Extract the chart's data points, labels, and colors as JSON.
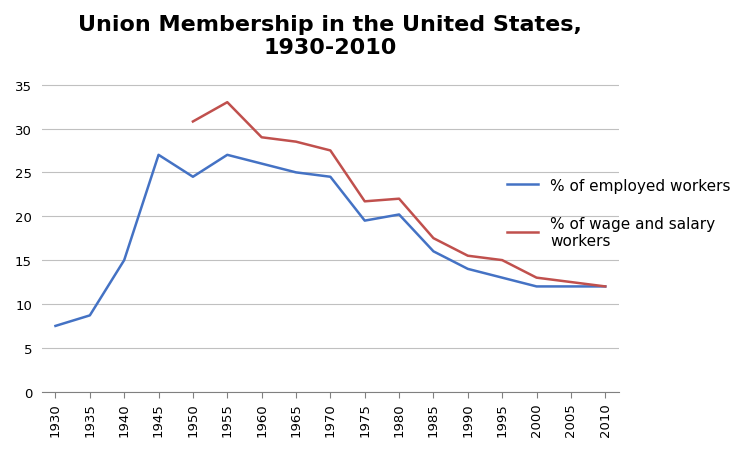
{
  "title": "Union Membership in the United States,\n1930-2010",
  "blue_label": "% of employed workers",
  "red_label": "% of wage and salary\nworkers",
  "blue_x": [
    1930,
    1935,
    1940,
    1945,
    1950,
    1955,
    1960,
    1965,
    1970,
    1975,
    1980,
    1985,
    1990,
    1995,
    2000,
    2005,
    2010
  ],
  "blue_y": [
    7.5,
    8.7,
    15.0,
    27.0,
    24.5,
    27.0,
    26.0,
    25.0,
    24.5,
    19.5,
    20.2,
    16.0,
    14.0,
    13.0,
    12.0,
    12.0,
    12.0
  ],
  "red_x": [
    1950,
    1955,
    1960,
    1965,
    1970,
    1975,
    1980,
    1985,
    1990,
    1995,
    2000,
    2005,
    2010
  ],
  "red_y": [
    30.8,
    33.0,
    29.0,
    28.5,
    27.5,
    21.7,
    22.0,
    17.5,
    15.5,
    15.0,
    13.0,
    12.5,
    12.0
  ],
  "blue_color": "#4472C4",
  "red_color": "#C0504D",
  "xlim": [
    1928,
    2012
  ],
  "ylim": [
    0,
    37
  ],
  "yticks": [
    0,
    5,
    10,
    15,
    20,
    25,
    30,
    35
  ],
  "xticks": [
    1930,
    1935,
    1940,
    1945,
    1950,
    1955,
    1960,
    1965,
    1970,
    1975,
    1980,
    1985,
    1990,
    1995,
    2000,
    2005,
    2010
  ],
  "bg_color": "#FFFFFF",
  "grid_color": "#C0C0C0",
  "title_fontsize": 16,
  "label_fontsize": 11,
  "tick_fontsize": 9.5
}
